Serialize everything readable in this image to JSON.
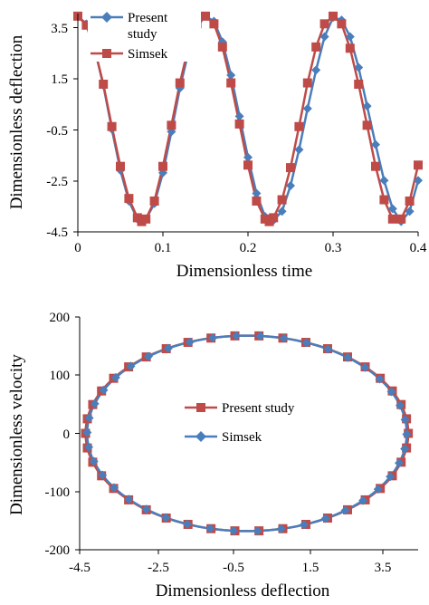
{
  "colors": {
    "present": "#4a7ebb",
    "simsek": "#be4b48",
    "axis": "#000000"
  },
  "chart_data": [
    {
      "type": "line",
      "title": "",
      "xlabel": "Dimensionless time",
      "ylabel": "Dimensionless deflection",
      "xlim": [
        0,
        0.4
      ],
      "ylim": [
        -4.5,
        4.0
      ],
      "xticks": [
        0,
        0.1,
        0.2,
        0.3,
        0.4
      ],
      "xtick_labels": [
        "0",
        "0.1",
        "0.2",
        "0.3",
        "0.4"
      ],
      "yticks": [
        3.5,
        1.5,
        -0.5,
        -2.5,
        -4.5
      ],
      "ytick_labels": [
        "3.5",
        "1.5",
        "-0.5",
        "-2.5",
        "-4.5"
      ],
      "grid": false,
      "legend_position": "top-left",
      "legend_labels": [
        "Present",
        "study",
        "Simsek"
      ],
      "series": [
        {
          "name": "Present study",
          "marker": "diamond",
          "color": "#4a7ebb",
          "x": [
            0,
            0.01,
            0.02,
            0.03,
            0.04,
            0.05,
            0.06,
            0.07,
            0.075,
            0.08,
            0.09,
            0.1,
            0.11,
            0.12,
            0.13,
            0.14,
            0.15,
            0.16,
            0.17,
            0.18,
            0.19,
            0.2,
            0.21,
            0.22,
            0.225,
            0.23,
            0.24,
            0.25,
            0.26,
            0.27,
            0.28,
            0.29,
            0.3,
            0.31,
            0.32,
            0.33,
            0.34,
            0.35,
            0.36,
            0.37,
            0.38,
            0.39,
            0.4
          ],
          "y": [
            3.9,
            3.6,
            2.6,
            1.2,
            -0.5,
            -2.1,
            -3.3,
            -4.0,
            -4.1,
            -4.0,
            -3.4,
            -2.2,
            -0.6,
            1.1,
            2.5,
            3.5,
            3.9,
            3.7,
            2.9,
            1.6,
            0.0,
            -1.6,
            -3.0,
            -3.9,
            -4.1,
            -4.05,
            -3.7,
            -2.7,
            -1.3,
            0.3,
            1.8,
            3.1,
            3.85,
            3.75,
            3.1,
            1.9,
            0.4,
            -1.1,
            -2.5,
            -3.6,
            -4.1,
            -3.7,
            -2.5
          ]
        },
        {
          "name": "Simsek",
          "marker": "square",
          "color": "#be4b48",
          "x": [
            0,
            0.01,
            0.02,
            0.03,
            0.04,
            0.05,
            0.06,
            0.07,
            0.075,
            0.08,
            0.09,
            0.1,
            0.11,
            0.12,
            0.13,
            0.14,
            0.15,
            0.16,
            0.17,
            0.18,
            0.19,
            0.2,
            0.21,
            0.22,
            0.225,
            0.23,
            0.24,
            0.25,
            0.26,
            0.27,
            0.28,
            0.29,
            0.3,
            0.31,
            0.32,
            0.33,
            0.34,
            0.35,
            0.36,
            0.37,
            0.38,
            0.39,
            0.4
          ],
          "y": [
            3.9,
            3.55,
            2.6,
            1.25,
            -0.4,
            -1.95,
            -3.2,
            -3.95,
            -4.1,
            -4.0,
            -3.3,
            -1.95,
            -0.35,
            1.3,
            2.7,
            3.6,
            3.9,
            3.6,
            2.7,
            1.3,
            -0.3,
            -1.9,
            -3.3,
            -4.0,
            -4.1,
            -3.95,
            -3.25,
            -2.0,
            -0.4,
            1.3,
            2.7,
            3.6,
            3.9,
            3.6,
            2.65,
            1.25,
            -0.35,
            -1.95,
            -3.25,
            -4.0,
            -4.0,
            -3.3,
            -1.9
          ]
        }
      ]
    },
    {
      "type": "line",
      "title": "",
      "xlabel": "Dimensionless deflection",
      "ylabel": "Dimensionless velocity",
      "xlim": [
        -4.5,
        4.1
      ],
      "ylim": [
        -200,
        200
      ],
      "xticks": [
        -4.5,
        -2.5,
        -0.5,
        1.5,
        3.5
      ],
      "xtick_labels": [
        "-4.5",
        "-2.5",
        "-0.5",
        "1.5",
        "3.5"
      ],
      "yticks": [
        200,
        100,
        0,
        -100,
        -200
      ],
      "ytick_labels": [
        "200",
        "100",
        "0",
        "-100",
        "-200"
      ],
      "grid": false,
      "legend_position": "center",
      "ellipse": {
        "center_x": -0.25,
        "center_y": 0,
        "semi_x": 4.1,
        "semi_y": 168
      },
      "series": [
        {
          "name": "Present study",
          "marker": "square",
          "color": "#be4b48",
          "phase_offset": 0.0,
          "n_points": 42
        },
        {
          "name": "Simsek",
          "marker": "diamond",
          "color": "#4a7ebb",
          "phase_offset": 0.07,
          "n_points": 42
        }
      ]
    }
  ]
}
